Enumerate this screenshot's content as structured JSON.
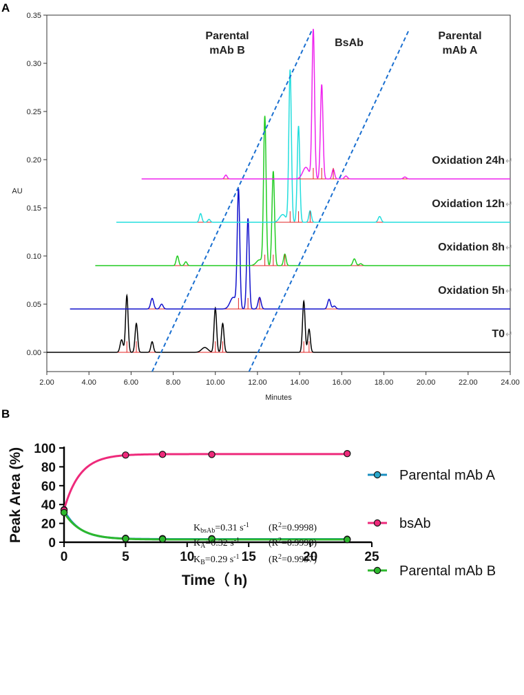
{
  "chart_data": [
    {
      "type": "line",
      "panel": "A",
      "title": "",
      "xlabel": "Minutes",
      "ylabel": "AU",
      "xlim": [
        2.0,
        24.0
      ],
      "ylim": [
        -0.02,
        0.35
      ],
      "x_ticks": [
        2.0,
        4.0,
        6.0,
        8.0,
        10.0,
        12.0,
        14.0,
        16.0,
        18.0,
        20.0,
        22.0,
        24.0
      ],
      "x_tick_labels": [
        "2.00",
        "4.00",
        "6.00",
        "8.00",
        "10.00",
        "12.00",
        "14.00",
        "16.00",
        "18.00",
        "20.00",
        "22.00",
        "24.00"
      ],
      "y_ticks": [
        0.0,
        0.05,
        0.1,
        0.15,
        0.2,
        0.25,
        0.3,
        0.35
      ],
      "y_tick_labels": [
        "0.00",
        "0.05",
        "0.10",
        "0.15",
        "0.20",
        "0.25",
        "0.30",
        "0.35"
      ],
      "region_labels": [
        {
          "line1": "Parental",
          "line2": "mAb B"
        },
        {
          "line1": "BsAb",
          "line2": ""
        },
        {
          "line1": "Parental",
          "line2": "mAb A"
        }
      ],
      "dashed_dividers": [
        {
          "from": [
            7.0,
            -0.02
          ],
          "to": [
            14.6,
            0.335
          ]
        },
        {
          "from": [
            11.6,
            -0.02
          ],
          "to": [
            19.2,
            0.335
          ]
        }
      ],
      "series": [
        {
          "name": "T0",
          "label": "T0",
          "color": "#000000",
          "baseline": 0.0,
          "x_start": 2.0,
          "x_end": 24.0,
          "peaks": [
            [
              5.55,
              0.013,
              0.07
            ],
            [
              5.8,
              0.059,
              0.06
            ],
            [
              6.25,
              0.03,
              0.06
            ],
            [
              7.0,
              0.011,
              0.06
            ],
            [
              9.5,
              0.005,
              0.15
            ],
            [
              10.0,
              0.046,
              0.06
            ],
            [
              10.35,
              0.03,
              0.06
            ],
            [
              14.2,
              0.053,
              0.06
            ],
            [
              14.45,
              0.024,
              0.06
            ]
          ],
          "peak_markers": [
            5.8,
            6.25,
            10.0,
            10.35,
            14.2,
            14.45
          ]
        },
        {
          "name": "Oxidation 5h",
          "label": "Oxidation 5h",
          "color": "#1010cc",
          "baseline": 0.045,
          "x_start": 3.1,
          "x_end": 24.0,
          "peaks": [
            [
              7.0,
              0.011,
              0.07
            ],
            [
              7.45,
              0.005,
              0.07
            ],
            [
              10.85,
              0.012,
              0.15
            ],
            [
              11.1,
              0.122,
              0.06
            ],
            [
              11.55,
              0.094,
              0.06
            ],
            [
              12.1,
              0.012,
              0.07
            ],
            [
              15.4,
              0.01,
              0.07
            ],
            [
              15.65,
              0.003,
              0.07
            ]
          ],
          "peak_markers": [
            11.1,
            11.55,
            12.1
          ]
        },
        {
          "name": "Oxidation 8h",
          "label": "Oxidation 8h",
          "color": "#22cc22",
          "baseline": 0.09,
          "x_start": 4.3,
          "x_end": 24.0,
          "peaks": [
            [
              8.2,
              0.01,
              0.06
            ],
            [
              8.6,
              0.004,
              0.06
            ],
            [
              12.1,
              0.006,
              0.15
            ],
            [
              12.35,
              0.154,
              0.06
            ],
            [
              12.75,
              0.098,
              0.06
            ],
            [
              13.3,
              0.012,
              0.06
            ],
            [
              16.6,
              0.007,
              0.07
            ],
            [
              16.9,
              0.002,
              0.07
            ]
          ],
          "peak_markers": [
            12.35,
            12.75,
            13.3
          ]
        },
        {
          "name": "Oxidation 12h",
          "label": "Oxidation 12h",
          "color": "#22dddd",
          "baseline": 0.135,
          "x_start": 5.3,
          "x_end": 24.0,
          "peaks": [
            [
              9.3,
              0.009,
              0.06
            ],
            [
              9.7,
              0.003,
              0.06
            ],
            [
              13.2,
              0.008,
              0.15
            ],
            [
              13.55,
              0.158,
              0.06
            ],
            [
              13.95,
              0.1,
              0.06
            ],
            [
              14.5,
              0.012,
              0.06
            ],
            [
              17.8,
              0.006,
              0.07
            ]
          ],
          "peak_markers": [
            13.55,
            13.95,
            14.5
          ]
        },
        {
          "name": "Oxidation 24h",
          "label": "Oxidation 24h",
          "color": "#ee22ee",
          "baseline": 0.18,
          "x_start": 6.5,
          "x_end": 24.0,
          "peaks": [
            [
              10.5,
              0.004,
              0.06
            ],
            [
              14.3,
              0.012,
              0.15
            ],
            [
              14.65,
              0.155,
              0.06
            ],
            [
              15.05,
              0.098,
              0.06
            ],
            [
              15.6,
              0.01,
              0.06
            ],
            [
              16.2,
              0.003,
              0.07
            ],
            [
              19.0,
              0.002,
              0.07
            ]
          ],
          "peak_markers": [
            14.65,
            15.05,
            15.6
          ]
        }
      ]
    },
    {
      "type": "line",
      "panel": "B",
      "title": "",
      "xlabel": "Time（ h)",
      "ylabel": "Peak Area (%)",
      "xlim": [
        0,
        25
      ],
      "ylim": [
        0,
        100
      ],
      "x_ticks": [
        0,
        5,
        10,
        15,
        20,
        25
      ],
      "y_ticks": [
        0,
        20,
        40,
        60,
        80,
        100
      ],
      "legend_position": "right",
      "series": [
        {
          "name": "Parental mAb A",
          "color": "#1a8fc0",
          "marker_color": "#2aa8cc",
          "x": [
            0,
            5,
            8,
            12,
            23
          ],
          "values": [
            34.5,
            4.2,
            3.9,
            3.8,
            3.2
          ],
          "fit": {
            "start": 34.0,
            "plateau": 3.3,
            "k": 0.32
          }
        },
        {
          "name": "bsAb",
          "color": "#ee2a7b",
          "marker_color": "#ee2a7b",
          "x": [
            0,
            5,
            8,
            12,
            23
          ],
          "values": [
            34.0,
            92.5,
            93.2,
            93.1,
            94.0
          ],
          "fit": {
            "start": 34.5,
            "plateau": 93.5,
            "k": 0.31
          }
        },
        {
          "name": "Parental mAb B",
          "color": "#2db82d",
          "marker_color": "#2db82d",
          "x": [
            0,
            5,
            8,
            12,
            23
          ],
          "values": [
            31.5,
            3.8,
            3.3,
            3.4,
            2.8
          ],
          "fit": {
            "start": 31.5,
            "plateau": 2.9,
            "k": 0.29
          }
        }
      ],
      "annotations": [
        {
          "k_label": "K",
          "k_sub": "bsAb",
          "value": "=0.31 s",
          "unit_sup": "-1",
          "r2_prefix": "(R",
          "r2_sup": "2",
          "r2_value": "=0.9998)"
        },
        {
          "k_label": "K",
          "k_sub": "A",
          "value": "=0.32 s",
          "unit_sup": "-1",
          "r2_prefix": "(R",
          "r2_sup": "2",
          "r2_value": "=0.9998)"
        },
        {
          "k_label": "K",
          "k_sub": "B",
          "value": "=0.29 s",
          "unit_sup": "-1",
          "r2_prefix": "(R",
          "r2_sup": "2",
          "r2_value": "=0.9997)"
        }
      ]
    }
  ],
  "panel_labels": {
    "a": "A",
    "b": "B"
  },
  "colors": {
    "peak_marker": "#e02020",
    "divider": "#1a6fd0",
    "arrow_mark": "#aaaaaa"
  }
}
